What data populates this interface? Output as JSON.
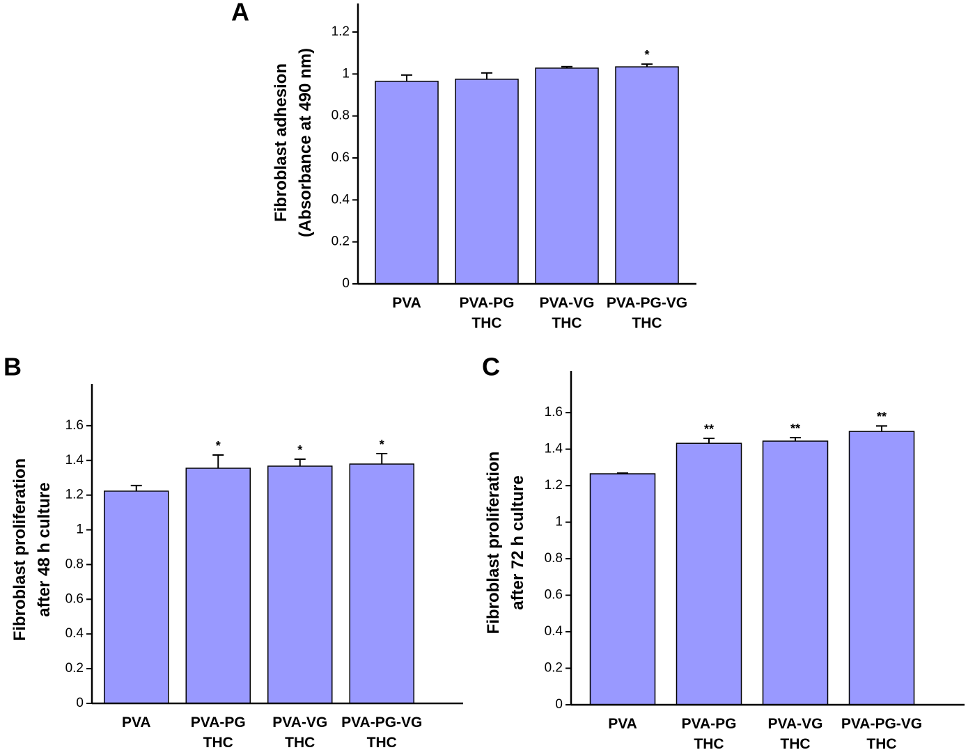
{
  "chart_data": [
    {
      "type": "bar",
      "label": "A",
      "ylabel": "Fibroblast adhesion\n(Absorbance at 490 nm)",
      "categories": [
        "PVA",
        "PVA-PG\nTHC",
        "PVA-VG\nTHC",
        "PVA-PG-VG\nTHC"
      ],
      "values": [
        0.965,
        0.975,
        1.028,
        1.034
      ],
      "errors": [
        0.03,
        0.03,
        0.007,
        0.013
      ],
      "annotations": [
        null,
        null,
        null,
        "*"
      ],
      "color": "#9999ff",
      "ylim": [
        0,
        1.336
      ],
      "yticks": [
        0,
        0.2,
        0.4,
        0.6,
        0.8,
        1,
        1.2
      ]
    },
    {
      "type": "bar",
      "label": "B",
      "ylabel": "Fibroblast proliferation\nafter 48 h culture",
      "categories": [
        "PVA",
        "PVA-PG\nTHC",
        "PVA-VG\nTHC",
        "PVA-PG-VG\nTHC"
      ],
      "values": [
        1.223,
        1.355,
        1.367,
        1.379
      ],
      "errors": [
        0.032,
        0.076,
        0.04,
        0.06
      ],
      "annotations": [
        null,
        "*",
        "*",
        "*"
      ],
      "color": "#9999ff",
      "ylim": [
        0,
        1.84
      ],
      "yticks": [
        0,
        0.2,
        0.4,
        0.6,
        0.8,
        1,
        1.2,
        1.4,
        1.6
      ]
    },
    {
      "type": "bar",
      "label": "C",
      "ylabel": "Fibroblast proliferation\nafter 72 h culture",
      "categories": [
        "PVA",
        "PVA-PG\nTHC",
        "PVA-VG\nTHC",
        "PVA-PG-VG\nTHC"
      ],
      "values": [
        1.265,
        1.432,
        1.444,
        1.497
      ],
      "errors": [
        0.004,
        0.027,
        0.019,
        0.03
      ],
      "annotations": [
        null,
        "**",
        "**",
        "**"
      ],
      "color": "#9999ff",
      "ylim": [
        0,
        1.829
      ],
      "yticks": [
        0,
        0.2,
        0.4,
        0.6,
        0.8,
        1,
        1.2,
        1.4,
        1.6
      ]
    }
  ]
}
